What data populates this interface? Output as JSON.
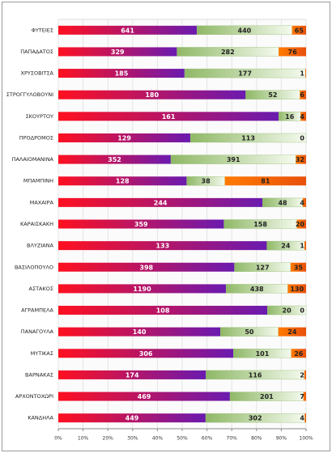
{
  "chart_data": {
    "type": "stacked_bar_100",
    "orientation": "horizontal",
    "categories": [
      "ΦΥΤΕΙΕΣ",
      "ΠΑΠΑΔΑΤΟΣ",
      "ΧΡΥΣΟΒΙΤΣΑ",
      "ΣΤΡΟΓΓΥΛΟΒΟΥΝΙ",
      "ΣΚΟΥΡΤΟΥ",
      "ΠΡΟΔΡΟΜΟΣ",
      "ΠΑΛΑΙΟΜΑΝΙΝΑ",
      "ΜΠΑΜΠΙΝΗ",
      "ΜΑΧΑΙΡΑ",
      "ΚΑΡΑΙΣΚΑΚΗ",
      "ΒΛΥΖΙΑΝΑ",
      "ΒΑΣΙΛΟΠΟΥΛΟ",
      "ΑΣΤΑΚΟΣ",
      "ΑΓΡΑΜΠΕΛΑ",
      "ΠΑΝΑΓΟΥΛΑ",
      "ΜΥΤΙΚΑΣ",
      "ΒΑΡΝΑΚΑΣ",
      "ΑΡΧΟΝΤΟΧΩΡΙ",
      "ΚΑΝΔΗΛΑ"
    ],
    "series": [
      {
        "color": "#6a1ab0",
        "values": [
          641,
          329,
          185,
          180,
          161,
          129,
          352,
          128,
          244,
          359,
          133,
          398,
          1190,
          108,
          140,
          306,
          174,
          469,
          449
        ]
      },
      {
        "color": "#8fb866",
        "values": [
          440,
          282,
          177,
          52,
          16,
          113,
          391,
          38,
          48,
          158,
          24,
          127,
          438,
          20,
          50,
          101,
          116,
          201,
          302
        ]
      },
      {
        "color": "#e8500c",
        "values": [
          65,
          76,
          1,
          6,
          4,
          0,
          32,
          81,
          4,
          20,
          1,
          35,
          130,
          0,
          24,
          26,
          2,
          7,
          4
        ]
      }
    ],
    "xlim": [
      0,
      100
    ],
    "xticks": [
      {
        "value": 0,
        "label": "0%"
      },
      {
        "value": 10,
        "label": "10%"
      },
      {
        "value": 20,
        "label": "20%"
      },
      {
        "value": 30,
        "label": "30%"
      },
      {
        "value": 40,
        "label": "40%"
      },
      {
        "value": 50,
        "label": "50%"
      },
      {
        "value": 60,
        "label": "60%"
      },
      {
        "value": 70,
        "label": "70%"
      },
      {
        "value": 80,
        "label": "80%"
      },
      {
        "value": 90,
        "label": "90%"
      },
      {
        "value": 100,
        "label": "100%"
      }
    ],
    "grid": true
  }
}
